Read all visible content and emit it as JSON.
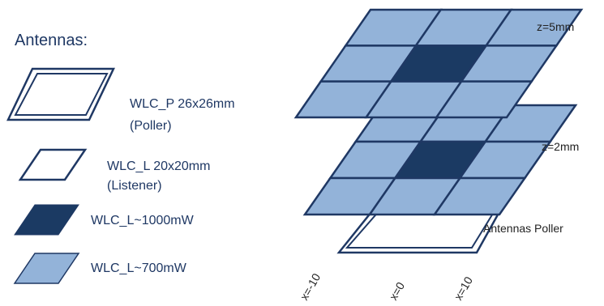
{
  "legend": {
    "heading": "Antennas:",
    "items": [
      {
        "key": "poller",
        "line1": "WLC_P 26x26mm",
        "line2": "(Poller)"
      },
      {
        "key": "listener",
        "line1": "WLC_L 20x20mm",
        "line2": "(Listener)"
      },
      {
        "key": "high",
        "line1": "WLC_L~1000mW",
        "line2": ""
      },
      {
        "key": "mid",
        "line1": "WLC_L~700mW",
        "line2": ""
      }
    ]
  },
  "layers": [
    {
      "label": "z=5mm"
    },
    {
      "label": "z=2mm"
    }
  ],
  "poller_label": "Antennas Poller",
  "x_axis_labels": [
    "x=-10",
    "x=0",
    "x=10"
  ],
  "colors": {
    "dark": "#1b3a63",
    "light": "#93b3d9",
    "outline": "#1f3864",
    "text": "#1f3864"
  }
}
